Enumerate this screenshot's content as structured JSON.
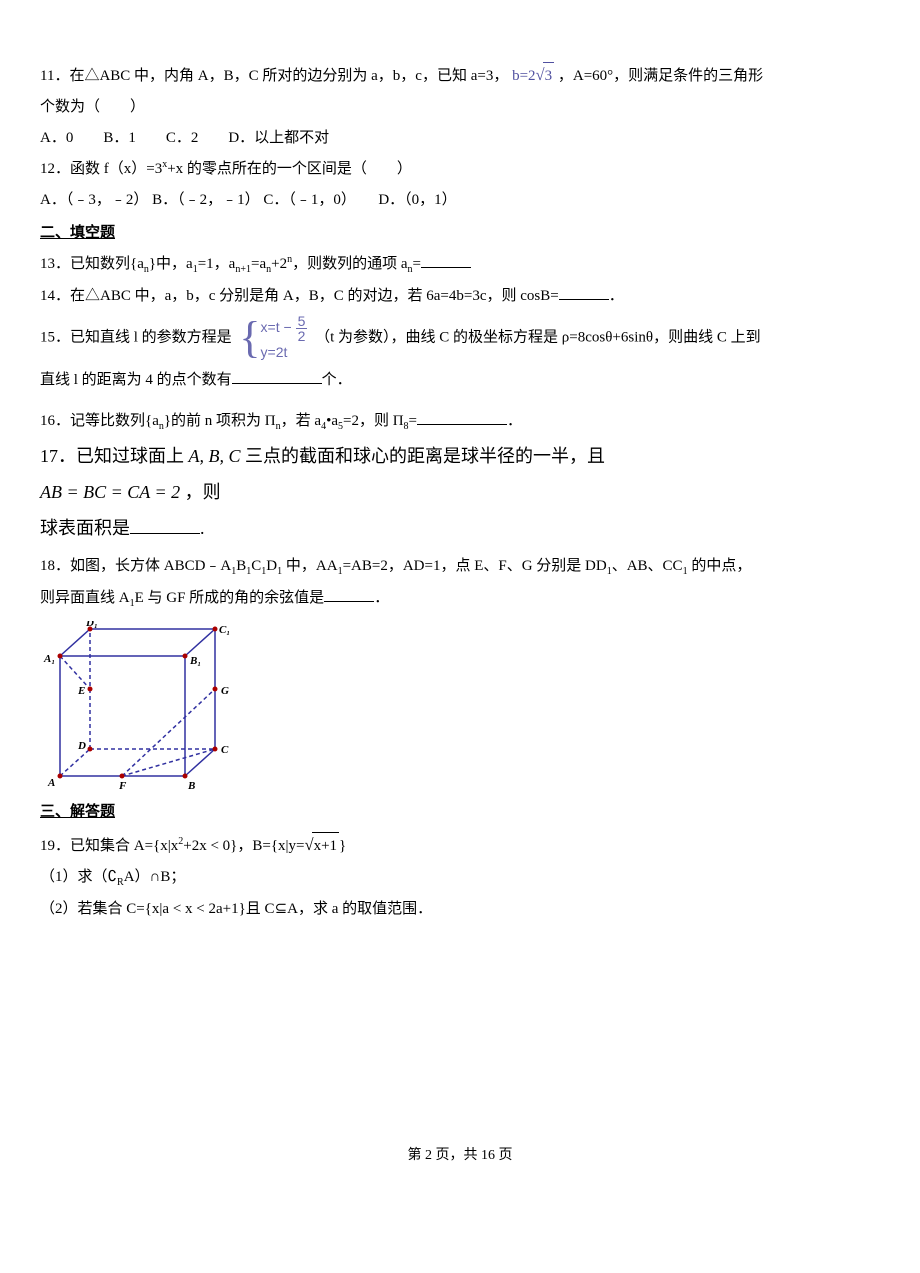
{
  "q11": {
    "text_a": "11．在△ABC 中，内角 A，B，C 所对的边分别为 a，b，c，已知 a=3，",
    "text_b": "b=2",
    "sqrt_val": "3",
    "text_c": "，A=60°，则满足条件的三角形",
    "text_d": "个数为（　　）",
    "opts": "A．0　　B．1　　C．2　　D．以上都不对"
  },
  "q12": {
    "text": "12．函数 f（x）=3",
    "exp": "x",
    "text2": "+x 的零点所在的一个区间是（　　）",
    "opts": "A．（﹣3，﹣2） B．（﹣2，﹣1） C．（﹣1，0）　　D．（0，1）"
  },
  "section2": "二、填空题",
  "q13": {
    "text_a": "13．已知数列{a",
    "n1": "n",
    "text_b": "}中，a",
    "n2": "1",
    "text_c": "=1，a",
    "n3": "n+1",
    "text_d": "=a",
    "n4": "n",
    "text_e": "+2",
    "n5": "n",
    "text_f": "，则数列的通项 a",
    "n6": "n",
    "text_g": "="
  },
  "q14": {
    "text": "14．在△ABC 中，a，b，c 分别是角 A，B，C 的对边，若 6a=4b=3c，则 cosB=",
    "end": "．"
  },
  "q15": {
    "text_a": "15．已知直线 l 的参数方程是",
    "line1_a": "x=t −",
    "frac_num": "5",
    "frac_den": "2",
    "line2": "y=2t",
    "text_b": "（t 为参数），曲线 C 的极坐标方程是 ρ=8cosθ+6sinθ，则曲线 C 上到",
    "text_c": "直线 l 的距离为 4 的点个数有",
    "text_d": "个．"
  },
  "q16": {
    "text_a": "16．记等比数列{a",
    "n1": "n",
    "text_b": "}的前 n 项积为 Π",
    "n2": "n",
    "text_c": "，若 a",
    "n3": "4",
    "text_d": "•a",
    "n4": "5",
    "text_e": "=2，则 Π",
    "n5": "8",
    "text_f": "=",
    "end": "．"
  },
  "q17": {
    "text_a": "17．已知过球面上  ",
    "abc": "A, B, C",
    "text_b": "  三点的截面和球心的距离是球半径的一半，且",
    "eq": "AB = BC = CA = 2",
    "text_c": " ，则",
    "text_d": "球表面积是",
    "end": "."
  },
  "q18": {
    "text_a": "18．如图，长方体 ABCD﹣A",
    "s1": "1",
    "text_b": "B",
    "s2": "1",
    "text_c": "C",
    "s3": "1",
    "text_d": "D",
    "s4": "1",
    "text_e": " 中，AA",
    "s5": "1",
    "text_f": "=AB=2，AD=1，点 E、F、G 分别是 DD",
    "s6": "1",
    "text_g": "、AB、CC",
    "s7": "1",
    "text_h": " 的中点，",
    "text_i": "则异面直线 A",
    "s8": "1",
    "text_j": "E 与 GF 所成的角的余弦值是",
    "end": "．"
  },
  "figure18": {
    "labels": {
      "D1": "D₁",
      "C1": "C₁",
      "A1": "A₁",
      "B1": "B₁",
      "E": "E",
      "G": "G",
      "D": "D",
      "C": "C",
      "A": "A",
      "F": "F",
      "B": "B"
    },
    "colors": {
      "edge": "#3030a0",
      "dash": "#3030a0",
      "diag": "#3030a0",
      "point": "#aa0000",
      "text": "#000000"
    }
  },
  "section3": "三、解答题",
  "q19": {
    "text_a": "19．已知集合 A={x|x",
    "exp": "2",
    "text_b": "+2x < 0}，B={x|y=",
    "sqrt_arg": "x+1",
    "text_c": "}",
    "p1_a": "（1）求（∁",
    "p1_sub": "R",
    "p1_b": "A）∩B；",
    "p2": "（2）若集合 C={x|a < x < 2a+1}且 C⊆A，求 a 的取值范围．"
  },
  "footer": {
    "a": "第 ",
    "page": "2",
    "b": " 页，共 ",
    "total": "16",
    "c": " 页"
  }
}
